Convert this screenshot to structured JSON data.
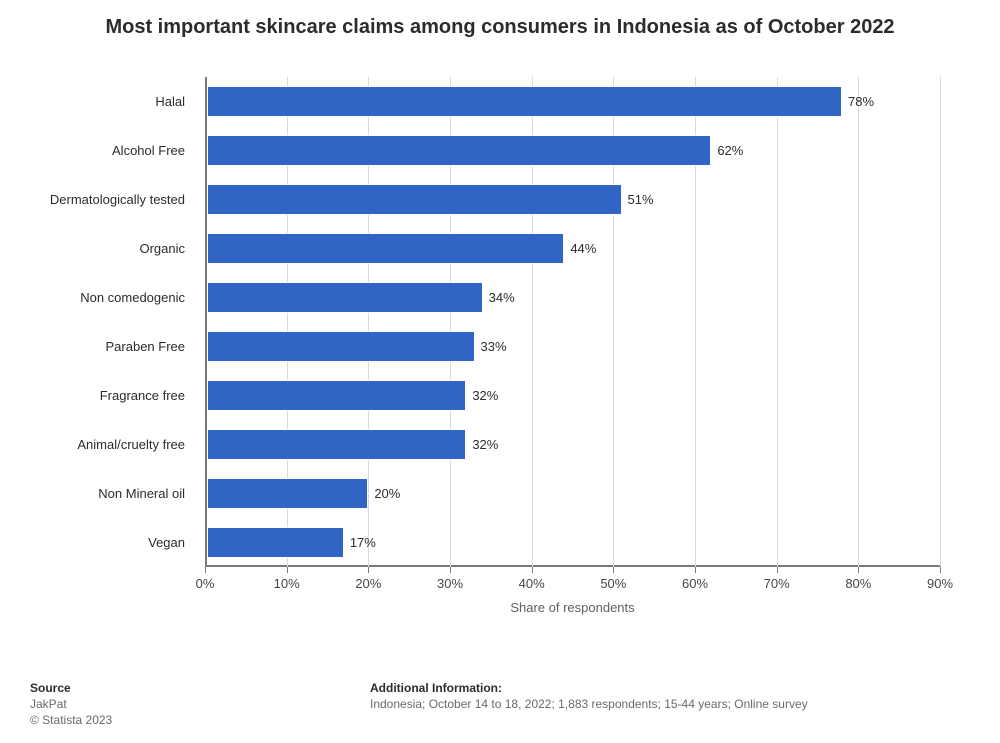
{
  "title": "Most important skincare claims among consumers in Indonesia as of October 2022",
  "title_fontsize": 20,
  "chart": {
    "type": "bar-horizontal",
    "categories": [
      "Halal",
      "Alcohol Free",
      "Dermatologically tested",
      "Organic",
      "Non comedogenic",
      "Paraben Free",
      "Fragrance free",
      "Animal/cruelty free",
      "Non Mineral oil",
      "Vegan"
    ],
    "values": [
      78,
      62,
      51,
      44,
      34,
      33,
      32,
      32,
      20,
      17
    ],
    "value_suffix": "%",
    "bar_color": "#3065c5",
    "xlabel": "Share of respondents",
    "xlim": [
      0,
      90
    ],
    "xtick_step": 10,
    "xtick_suffix": "%",
    "grid_color": "#d9d9d9",
    "axis_color": "#7a7a7a",
    "background_color": "#ffffff",
    "label_fontsize": 13,
    "tick_fontsize": 13,
    "value_fontsize": 13,
    "bar_height_ratio": 0.64
  },
  "footer": {
    "source_heading": "Source",
    "source_body": "JakPat",
    "copyright": "© Statista 2023",
    "info_heading": "Additional Information:",
    "info_body": "Indonesia; October 14 to 18, 2022; 1,883 respondents; 15-44 years; Online survey"
  }
}
